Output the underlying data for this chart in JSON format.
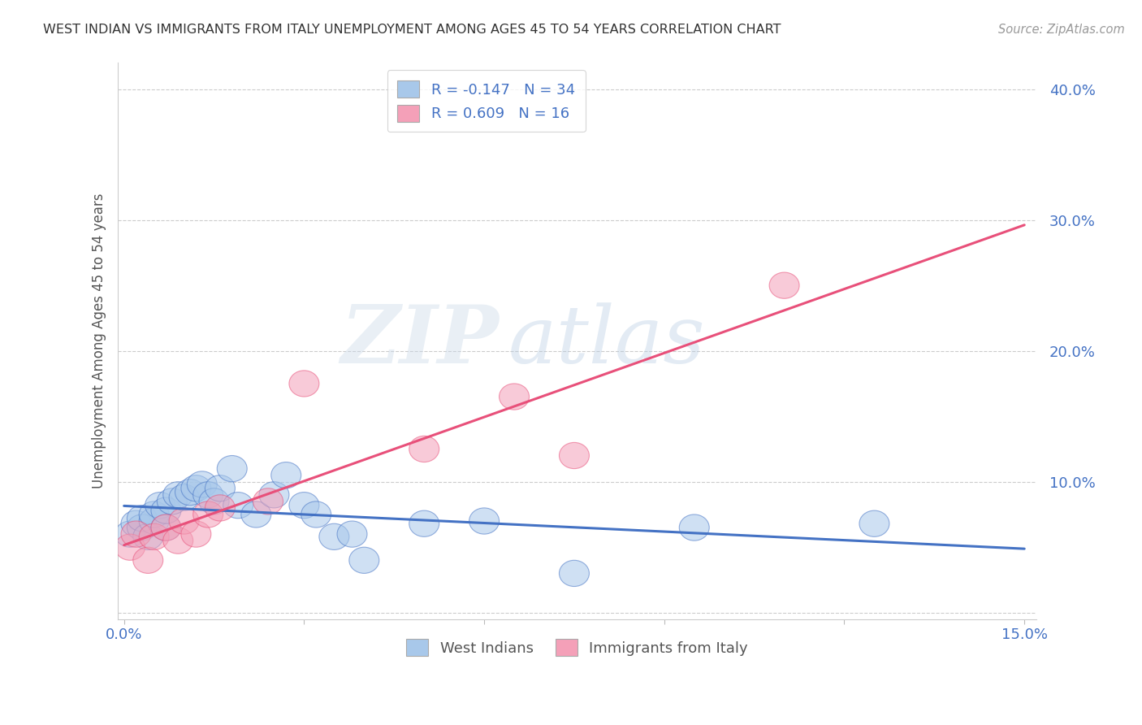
{
  "title": "WEST INDIAN VS IMMIGRANTS FROM ITALY UNEMPLOYMENT AMONG AGES 45 TO 54 YEARS CORRELATION CHART",
  "source": "Source: ZipAtlas.com",
  "ylabel": "Unemployment Among Ages 45 to 54 years",
  "xlim": [
    -0.001,
    0.152
  ],
  "ylim": [
    -0.005,
    0.42
  ],
  "xticks": [
    0.0,
    0.03,
    0.06,
    0.09,
    0.12,
    0.15
  ],
  "xtick_labels": [
    "0.0%",
    "",
    "",
    "",
    "",
    "15.0%"
  ],
  "yticks": [
    0.0,
    0.1,
    0.2,
    0.3,
    0.4
  ],
  "ytick_labels": [
    "",
    "10.0%",
    "20.0%",
    "30.0%",
    "40.0%"
  ],
  "west_indians": {
    "label": "West Indians",
    "R": -0.147,
    "N": 34,
    "color": "#a8c8ea",
    "line_color": "#4472c4",
    "x": [
      0.001,
      0.002,
      0.003,
      0.003,
      0.004,
      0.005,
      0.005,
      0.006,
      0.007,
      0.007,
      0.008,
      0.009,
      0.01,
      0.011,
      0.012,
      0.013,
      0.014,
      0.015,
      0.016,
      0.018,
      0.019,
      0.022,
      0.025,
      0.027,
      0.03,
      0.032,
      0.035,
      0.038,
      0.04,
      0.05,
      0.06,
      0.075,
      0.095,
      0.125
    ],
    "y": [
      0.06,
      0.068,
      0.065,
      0.072,
      0.058,
      0.07,
      0.075,
      0.082,
      0.065,
      0.078,
      0.085,
      0.09,
      0.088,
      0.092,
      0.095,
      0.098,
      0.09,
      0.085,
      0.095,
      0.11,
      0.082,
      0.075,
      0.09,
      0.105,
      0.082,
      0.075,
      0.058,
      0.06,
      0.04,
      0.068,
      0.07,
      0.03,
      0.065,
      0.068
    ]
  },
  "italy_immigrants": {
    "label": "Immigrants from Italy",
    "R": 0.609,
    "N": 16,
    "color": "#f4a0b8",
    "line_color": "#e8507a",
    "x": [
      0.001,
      0.002,
      0.004,
      0.005,
      0.007,
      0.009,
      0.01,
      0.012,
      0.014,
      0.016,
      0.024,
      0.03,
      0.05,
      0.065,
      0.075,
      0.11
    ],
    "y": [
      0.05,
      0.06,
      0.04,
      0.058,
      0.065,
      0.055,
      0.07,
      0.06,
      0.075,
      0.08,
      0.085,
      0.175,
      0.125,
      0.165,
      0.12,
      0.25
    ]
  },
  "background_color": "#ffffff",
  "grid_color": "#cccccc",
  "tick_color": "#4472c4",
  "title_color": "#333333",
  "source_color": "#999999",
  "ylabel_color": "#555555"
}
